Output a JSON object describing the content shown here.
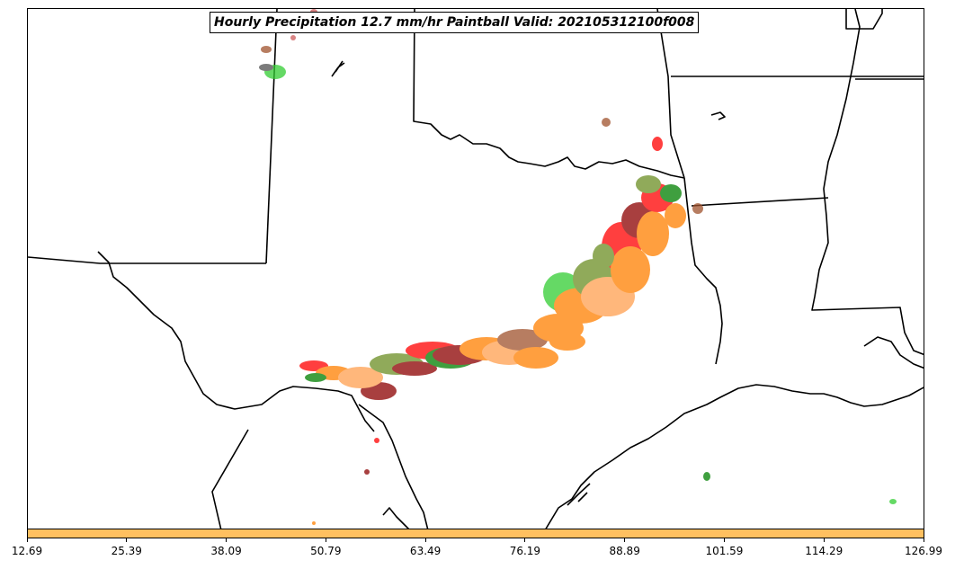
{
  "title": "Hourly Precipitation 12.7 mm/hr Paintball Valid: 202105312100f008",
  "colorbar": {
    "color": "#ffc060",
    "ticks": [
      "12.69",
      "25.39",
      "38.09",
      "50.79",
      "63.49",
      "76.19",
      "88.89",
      "101.59",
      "114.29",
      "126.99"
    ]
  },
  "colors": {
    "state_line": "#000000",
    "member_colors": [
      "#ff0000",
      "#ff8000",
      "#8b0000",
      "#6b8e23",
      "#008000",
      "#32cd32",
      "#a0522d",
      "#505050",
      "#cd5c5c",
      "#ffa050"
    ]
  }
}
